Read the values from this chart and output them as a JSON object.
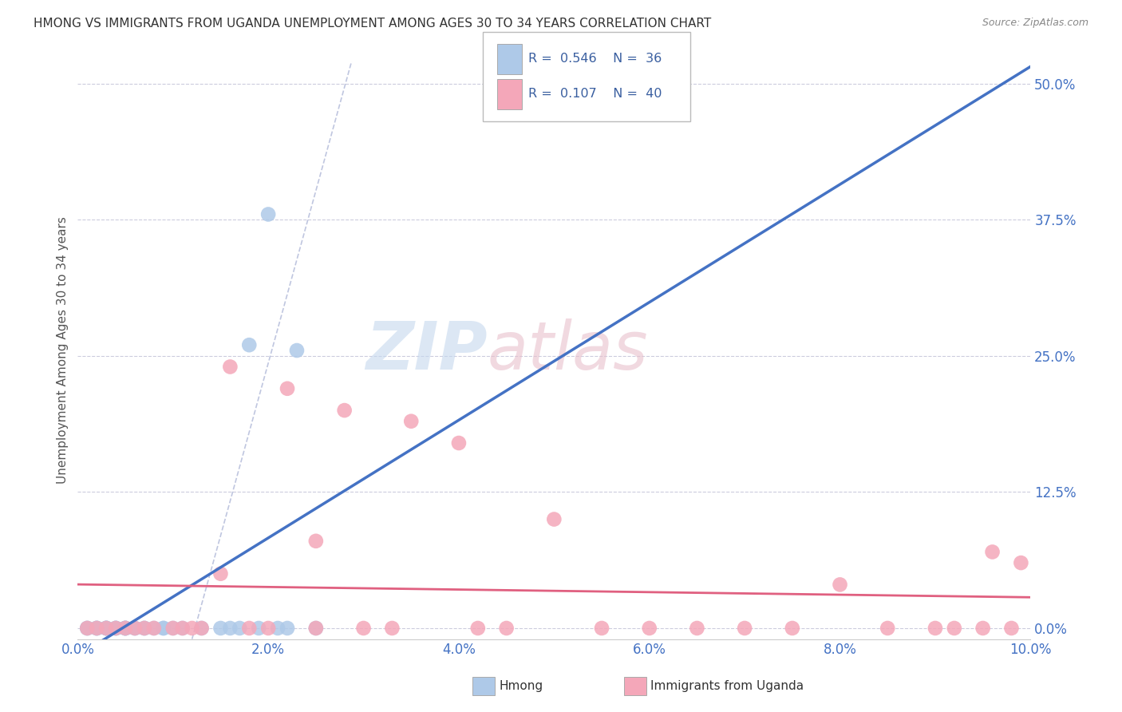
{
  "title": "HMONG VS IMMIGRANTS FROM UGANDA UNEMPLOYMENT AMONG AGES 30 TO 34 YEARS CORRELATION CHART",
  "source": "Source: ZipAtlas.com",
  "ylabel": "Unemployment Among Ages 30 to 34 years",
  "hmong_R": 0.546,
  "hmong_N": 36,
  "uganda_R": 0.107,
  "uganda_N": 40,
  "xlim": [
    0.0,
    0.1
  ],
  "ylim": [
    -0.01,
    0.52
  ],
  "xticks": [
    0.0,
    0.02,
    0.04,
    0.06,
    0.08,
    0.1
  ],
  "yticks": [
    0.0,
    0.125,
    0.25,
    0.375,
    0.5
  ],
  "ytick_labels": [
    "0.0%",
    "12.5%",
    "25.0%",
    "37.5%",
    "50.0%"
  ],
  "xtick_labels": [
    "0.0%",
    "2.0%",
    "4.0%",
    "6.0%",
    "8.0%",
    "10.0%"
  ],
  "hmong_color": "#aec9e8",
  "hmong_line_color": "#4472c4",
  "uganda_color": "#f4a7b9",
  "uganda_line_color": "#e06080",
  "tick_label_color": "#4472c4",
  "watermark_zip": "ZIP",
  "watermark_atlas": "atlas",
  "background_color": "#ffffff",
  "hmong_x": [
    0.001,
    0.001,
    0.002,
    0.002,
    0.002,
    0.003,
    0.003,
    0.003,
    0.003,
    0.004,
    0.004,
    0.004,
    0.005,
    0.005,
    0.005,
    0.005,
    0.006,
    0.006,
    0.007,
    0.007,
    0.008,
    0.009,
    0.009,
    0.01,
    0.011,
    0.013,
    0.015,
    0.016,
    0.017,
    0.018,
    0.019,
    0.02,
    0.021,
    0.022,
    0.023,
    0.025
  ],
  "hmong_y": [
    0.0,
    0.0,
    0.0,
    0.0,
    0.0,
    0.0,
    0.0,
    0.0,
    0.0,
    0.0,
    0.0,
    0.0,
    0.0,
    0.0,
    0.0,
    0.0,
    0.0,
    0.0,
    0.0,
    0.0,
    0.0,
    0.0,
    0.0,
    0.0,
    0.0,
    0.0,
    0.0,
    0.0,
    0.0,
    0.26,
    0.0,
    0.38,
    0.0,
    0.0,
    0.255,
    0.0
  ],
  "uganda_x": [
    0.001,
    0.002,
    0.003,
    0.004,
    0.005,
    0.006,
    0.007,
    0.008,
    0.01,
    0.011,
    0.012,
    0.013,
    0.015,
    0.016,
    0.018,
    0.02,
    0.022,
    0.025,
    0.025,
    0.028,
    0.03,
    0.033,
    0.035,
    0.04,
    0.042,
    0.045,
    0.05,
    0.055,
    0.06,
    0.065,
    0.07,
    0.075,
    0.08,
    0.085,
    0.09,
    0.092,
    0.095,
    0.096,
    0.098,
    0.099
  ],
  "uganda_y": [
    0.0,
    0.0,
    0.0,
    0.0,
    0.0,
    0.0,
    0.0,
    0.0,
    0.0,
    0.0,
    0.0,
    0.0,
    0.05,
    0.24,
    0.0,
    0.0,
    0.22,
    0.0,
    0.08,
    0.2,
    0.0,
    0.0,
    0.19,
    0.17,
    0.0,
    0.0,
    0.1,
    0.0,
    0.0,
    0.0,
    0.0,
    0.0,
    0.04,
    0.0,
    0.0,
    0.0,
    0.0,
    0.07,
    0.0,
    0.06
  ]
}
